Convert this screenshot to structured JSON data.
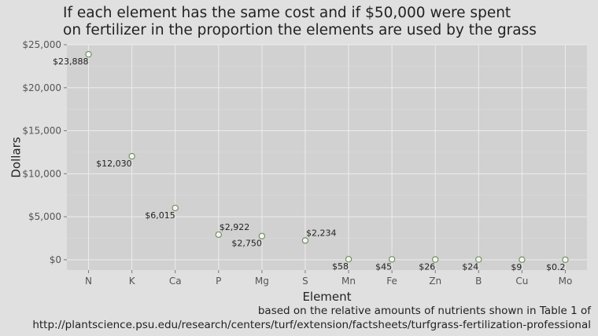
{
  "chart_data": {
    "type": "scatter",
    "title_lines": [
      "If each element has the same cost and if $50,000 were spent",
      "on fertilizer in the proportion the elements are used by the grass"
    ],
    "xlabel": "Element",
    "ylabel": "Dollars",
    "categories": [
      "N",
      "K",
      "Ca",
      "P",
      "Mg",
      "S",
      "Mn",
      "Fe",
      "Zn",
      "B",
      "Cu",
      "Mo"
    ],
    "values": [
      23888,
      12030,
      6015,
      2922,
      2750,
      2234,
      58,
      45,
      26,
      24,
      9,
      0.2
    ],
    "data_labels": [
      "$23,888",
      "$12,030",
      "$6,015",
      "$2,922",
      "$2,750",
      "$2,234",
      "$58",
      "$45",
      "$26",
      "$24",
      "$9",
      "$0.2"
    ],
    "yticks": [
      0,
      5000,
      10000,
      15000,
      20000,
      25000
    ],
    "ytick_labels": [
      "$0",
      "$5,000",
      "$10,000",
      "$15,000",
      "$20,000",
      "$25,000"
    ],
    "ylim": [
      -1200,
      25000
    ],
    "grid": true,
    "point_color": "#6a8a5a",
    "panel_color": "#d1d1d1",
    "caption_lines": [
      "based on the relative amounts of nutrients shown in Table 1 of",
      "http://plantscience.psu.edu/research/centers/turf/extension/factsheets/turfgrass-fertilization-professional"
    ]
  }
}
